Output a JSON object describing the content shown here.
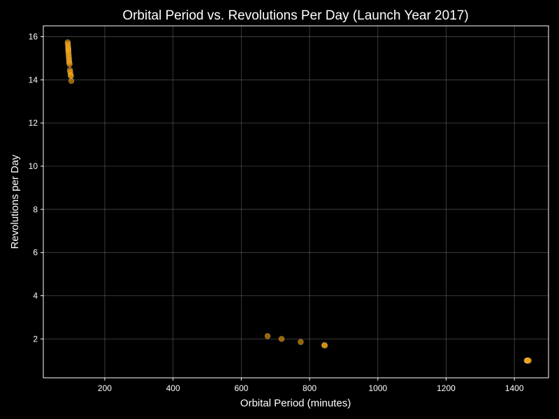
{
  "chart_data": {
    "type": "scatter",
    "title": "Orbital Period vs. Revolutions Per Day (Launch Year 2017)",
    "xlabel": "Orbital Period (minutes)",
    "ylabel": "Revolutions per Day",
    "xlim": [
      20,
      1500
    ],
    "ylim": [
      0.2,
      16.5
    ],
    "xticks": [
      200,
      400,
      600,
      800,
      1000,
      1200,
      1400
    ],
    "yticks": [
      2,
      4,
      6,
      8,
      10,
      12,
      14,
      16
    ],
    "grid": true,
    "colors": {
      "background": "#000000",
      "point_fill": "#ffa500",
      "point_stroke": "#ffffff",
      "text": "#ffffff"
    },
    "points": [
      {
        "x": 91.5,
        "y": 15.74
      },
      {
        "x": 92.0,
        "y": 15.65
      },
      {
        "x": 92.5,
        "y": 15.55
      },
      {
        "x": 93.0,
        "y": 15.45
      },
      {
        "x": 93.2,
        "y": 15.38
      },
      {
        "x": 93.5,
        "y": 15.3
      },
      {
        "x": 94.0,
        "y": 15.2
      },
      {
        "x": 94.5,
        "y": 15.1
      },
      {
        "x": 95.0,
        "y": 15.0
      },
      {
        "x": 95.5,
        "y": 14.9
      },
      {
        "x": 96.0,
        "y": 14.8
      },
      {
        "x": 97.0,
        "y": 14.72
      },
      {
        "x": 98.0,
        "y": 14.45
      },
      {
        "x": 99.0,
        "y": 14.35
      },
      {
        "x": 100.0,
        "y": 14.22
      },
      {
        "x": 101.0,
        "y": 14.18
      },
      {
        "x": 102.0,
        "y": 13.95
      },
      {
        "x": 677,
        "y": 2.13
      },
      {
        "x": 718,
        "y": 2.0
      },
      {
        "x": 774,
        "y": 1.86
      },
      {
        "x": 843,
        "y": 1.71
      },
      {
        "x": 845,
        "y": 1.7
      },
      {
        "x": 1436,
        "y": 1.0
      },
      {
        "x": 1438,
        "y": 1.0
      },
      {
        "x": 1440,
        "y": 1.0
      },
      {
        "x": 1442,
        "y": 1.0
      }
    ]
  }
}
